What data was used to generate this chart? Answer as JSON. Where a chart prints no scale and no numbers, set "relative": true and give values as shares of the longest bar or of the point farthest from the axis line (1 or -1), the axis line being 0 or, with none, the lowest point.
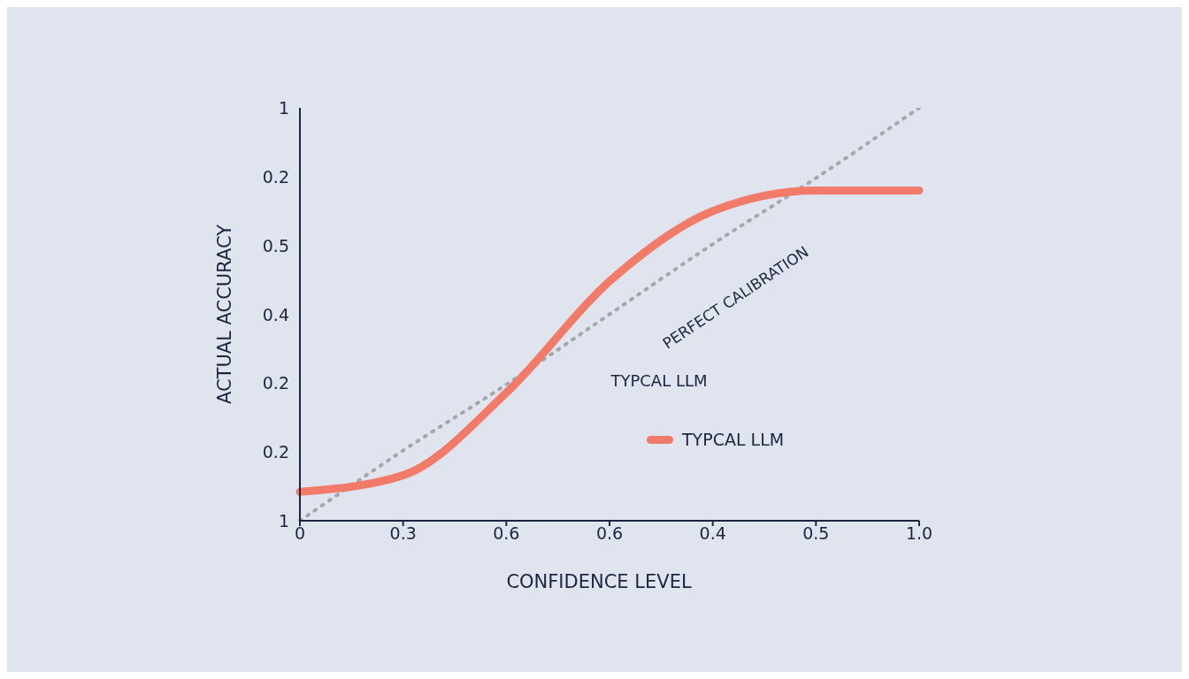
{
  "chart_data": {
    "type": "line",
    "xlabel": "CONFIDENCE LEVEL",
    "ylabel": "ACTUAL ACCURACY",
    "relative": true,
    "categories": [
      "0",
      "0.3",
      "0.6",
      "0.6",
      "0.4",
      "0.5",
      "1.0"
    ],
    "grid": false,
    "legend": "bottom right",
    "marker": "none",
    "series": [
      {
        "color": "#a4a7ad",
        "line_style": "dotted",
        "values": [
          0,
          0.17,
          0.33,
          0.5,
          0.67,
          0.83,
          1
        ]
      },
      {
        "name": "TYPCAL LLM",
        "color": "#f27a68",
        "line_style": "solid",
        "values": [
          0.07,
          0.11,
          0.31,
          0.58,
          0.75,
          0.8,
          0.8
        ]
      }
    ],
    "annotations": [
      "PERFECT CALIBRATION",
      "TYPCAL LLM",
      "1",
      "0.2",
      "0.2",
      "0.4",
      "0.5",
      "0.2",
      "1"
    ]
  }
}
